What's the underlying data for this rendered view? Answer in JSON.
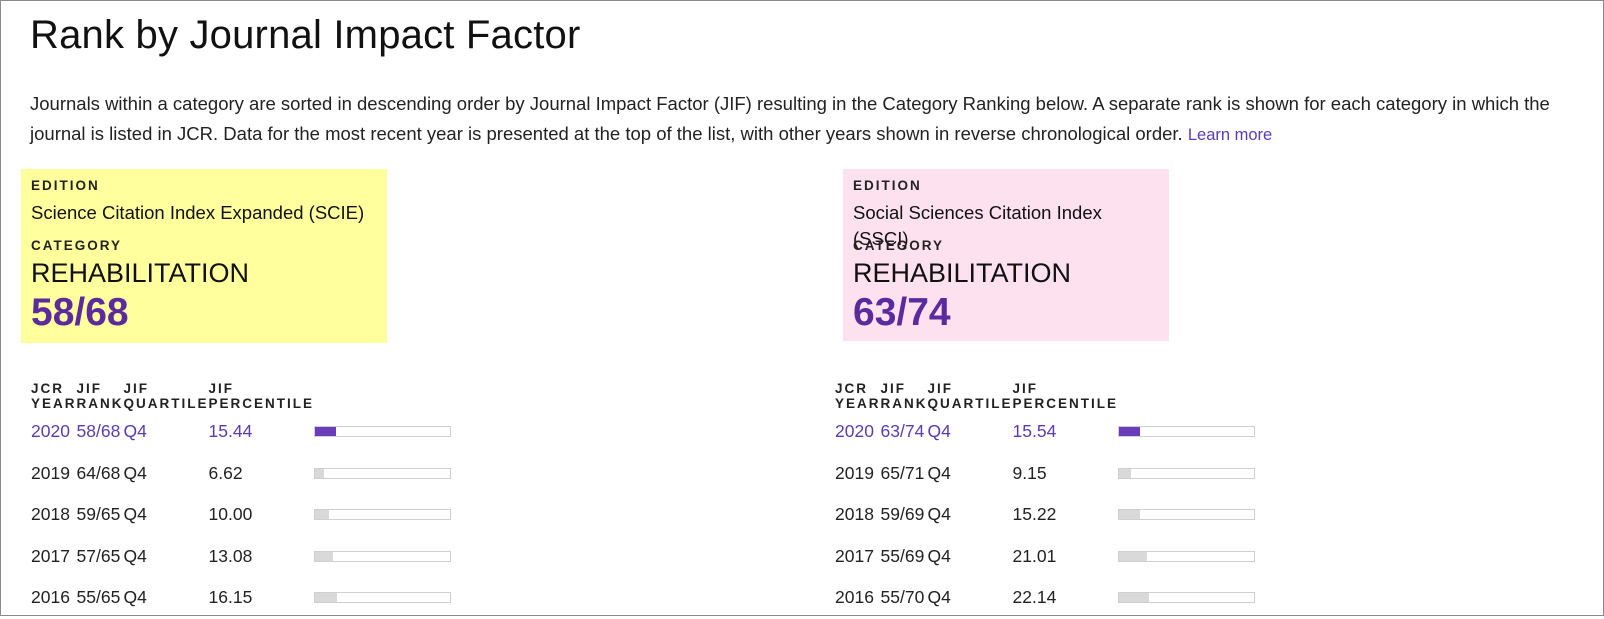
{
  "title": "Rank by Journal Impact Factor",
  "description": "Journals within a category are sorted in descending order by Journal Impact Factor (JIF) resulting in the Category Ranking below. A separate rank is shown for each category in which the journal is listed in JCR. Data for the most recent year is presented at the top of the list, with other years shown in reverse chronological order.",
  "learn_more": "Learn more",
  "labels": {
    "edition": "EDITION",
    "category": "CATEGORY",
    "jcr_year": "JCR YEAR",
    "jif_rank": "JIF RANK",
    "jif_quartile": "JIF QUARTILE",
    "jif_percentile": "JIF PERCENTILE"
  },
  "colors": {
    "accent": "#5b3bb5",
    "scie_bg": "#ffff9e",
    "ssci_bg": "#fde1ee",
    "bar_current": "#6a3dbd",
    "bar_past": "#d9d9d9"
  },
  "panels": [
    {
      "edition": "Science Citation Index Expanded (SCIE)",
      "category": "REHABILITATION",
      "rank": "58/68",
      "rows": [
        {
          "year": "2020",
          "rank": "58/68",
          "quartile": "Q4",
          "percentile": "15.44"
        },
        {
          "year": "2019",
          "rank": "64/68",
          "quartile": "Q4",
          "percentile": "6.62"
        },
        {
          "year": "2018",
          "rank": "59/65",
          "quartile": "Q4",
          "percentile": "10.00"
        },
        {
          "year": "2017",
          "rank": "57/65",
          "quartile": "Q4",
          "percentile": "13.08"
        },
        {
          "year": "2016",
          "rank": "55/65",
          "quartile": "Q4",
          "percentile": "16.15"
        }
      ]
    },
    {
      "edition": "Social Sciences Citation Index (SSCI)",
      "category": "REHABILITATION",
      "rank": "63/74",
      "rows": [
        {
          "year": "2020",
          "rank": "63/74",
          "quartile": "Q4",
          "percentile": "15.54"
        },
        {
          "year": "2019",
          "rank": "65/71",
          "quartile": "Q4",
          "percentile": "9.15"
        },
        {
          "year": "2018",
          "rank": "59/69",
          "quartile": "Q4",
          "percentile": "15.22"
        },
        {
          "year": "2017",
          "rank": "55/69",
          "quartile": "Q4",
          "percentile": "21.01"
        },
        {
          "year": "2016",
          "rank": "55/70",
          "quartile": "Q4",
          "percentile": "22.14"
        }
      ]
    }
  ]
}
